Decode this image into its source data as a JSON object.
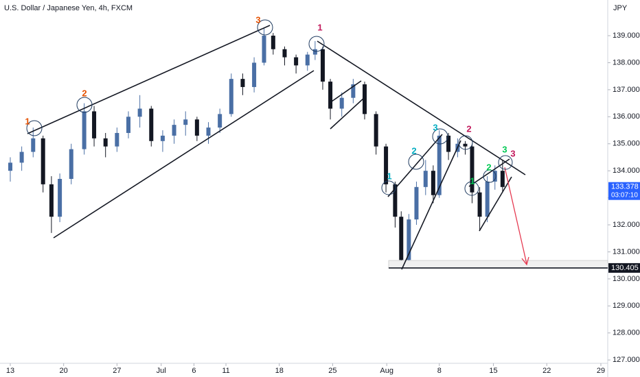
{
  "chart_data": {
    "type": "candlestick",
    "title": "U.S. Dollar / Japanese Yen, 4h, FXCM",
    "currency": "JPY",
    "up_color": "#4a6fa5",
    "down_color": "#131722",
    "x": [
      0,
      1.5,
      3,
      4.3,
      5.4,
      6.5,
      8,
      9.7,
      11,
      12.5,
      14,
      15.5,
      17,
      18.5,
      20,
      21.5,
      23,
      24.5,
      26,
      27.5,
      29,
      30.5,
      32,
      33.3,
      34.5,
      36,
      37.5,
      39,
      40,
      41,
      42,
      43.5,
      45,
      46.5,
      48,
      49.3,
      50.5,
      51.3,
      52.3,
      53.3,
      54.5,
      55.5,
      56.3,
      57.5,
      58.7,
      59.7,
      60.6,
      61.6,
      62.6,
      63.6,
      64.6
    ],
    "open": [
      134.0,
      134.3,
      134.7,
      135.2,
      133.5,
      132.3,
      133.7,
      134.8,
      136.2,
      135.2,
      134.9,
      135.4,
      136.0,
      136.3,
      135.1,
      135.3,
      135.7,
      135.9,
      135.3,
      135.6,
      136.1,
      137.4,
      137.1,
      138.0,
      139.0,
      138.5,
      138.2,
      137.9,
      138.3,
      138.5,
      137.3,
      136.3,
      136.7,
      137.2,
      136.1,
      134.9,
      133.5,
      132.3,
      130.7,
      132.2,
      133.4,
      134.0,
      133.1,
      135.3,
      134.7,
      135.0,
      134.9,
      133.2,
      132.3,
      133.6,
      134.0
    ],
    "high": [
      134.5,
      134.9,
      135.6,
      135.3,
      133.8,
      133.9,
      135.0,
      136.5,
      136.4,
      135.4,
      135.6,
      136.2,
      136.8,
      136.4,
      135.5,
      135.9,
      136.2,
      136.0,
      135.8,
      136.3,
      137.6,
      137.6,
      138.2,
      139.3,
      139.1,
      138.6,
      138.3,
      138.4,
      138.8,
      138.6,
      137.4,
      136.9,
      137.4,
      137.3,
      136.2,
      135.0,
      133.6,
      132.5,
      132.4,
      133.6,
      134.4,
      134.2,
      135.5,
      135.4,
      135.2,
      135.1,
      135.0,
      133.4,
      133.8,
      134.2,
      134.4
    ],
    "low": [
      133.6,
      134.0,
      134.5,
      133.2,
      131.7,
      132.1,
      133.5,
      134.6,
      134.9,
      134.5,
      134.7,
      135.2,
      135.6,
      134.9,
      134.7,
      135.0,
      135.3,
      135.1,
      135.0,
      135.4,
      136.0,
      136.8,
      136.9,
      137.9,
      138.3,
      137.9,
      137.6,
      137.7,
      138.1,
      137.0,
      135.9,
      136.0,
      136.5,
      135.9,
      134.6,
      133.2,
      131.9,
      130.4,
      130.6,
      132.0,
      133.1,
      132.8,
      133.0,
      134.4,
      134.5,
      134.6,
      132.8,
      131.8,
      132.1,
      133.3,
      133.2
    ],
    "close": [
      134.3,
      134.7,
      135.2,
      133.5,
      132.3,
      133.7,
      134.8,
      136.2,
      135.2,
      134.9,
      135.4,
      136.0,
      136.3,
      135.1,
      135.3,
      135.7,
      135.9,
      135.3,
      135.6,
      136.1,
      137.4,
      137.1,
      138.0,
      139.0,
      138.5,
      138.2,
      137.9,
      138.3,
      138.5,
      137.3,
      136.3,
      136.7,
      137.2,
      136.1,
      134.9,
      133.5,
      132.3,
      130.7,
      132.2,
      133.4,
      134.0,
      133.1,
      135.3,
      134.7,
      135.0,
      134.9,
      133.2,
      132.3,
      133.6,
      134.0,
      133.4
    ],
    "xlim": [
      -1.35,
      78.4
    ],
    "xticks": [
      {
        "value": 0,
        "label": "13"
      },
      {
        "value": 7,
        "label": "20"
      },
      {
        "value": 14,
        "label": "27"
      },
      {
        "value": 19.8,
        "label": "Jul"
      },
      {
        "value": 24.1,
        "label": "6"
      },
      {
        "value": 28.3,
        "label": "11"
      },
      {
        "value": 35.3,
        "label": "18"
      },
      {
        "value": 42.3,
        "label": "25"
      },
      {
        "value": 49.4,
        "label": "Aug"
      },
      {
        "value": 56.3,
        "label": "8"
      },
      {
        "value": 63.4,
        "label": "15"
      },
      {
        "value": 70.4,
        "label": "22"
      },
      {
        "value": 77.5,
        "label": "29"
      }
    ],
    "ylim": [
      126.75,
      140.32
    ],
    "yticks": [
      {
        "value": 127,
        "label": "127.000"
      },
      {
        "value": 128,
        "label": "128.000"
      },
      {
        "value": 129,
        "label": "129.000"
      },
      {
        "value": 130,
        "label": "130.000"
      },
      {
        "value": 131,
        "label": "131.000"
      },
      {
        "value": 132,
        "label": "132.000"
      },
      {
        "value": 133,
        "label": "133.000"
      },
      {
        "value": 134,
        "label": "134.000"
      },
      {
        "value": 135,
        "label": "135.000"
      },
      {
        "value": 136,
        "label": "136.000"
      },
      {
        "value": 137,
        "label": "137.000"
      },
      {
        "value": 138,
        "label": "138.000"
      },
      {
        "value": 139,
        "label": "139.000"
      }
    ],
    "current_price": {
      "value": 133.378,
      "label": "133.378"
    },
    "countdown": "03:07:10",
    "level": {
      "value": 130.405,
      "label": "130.405"
    },
    "annotations": [
      "1",
      "2",
      "3",
      "1",
      "3",
      "2",
      "2",
      "1",
      "3",
      "3",
      "2",
      "1"
    ]
  }
}
